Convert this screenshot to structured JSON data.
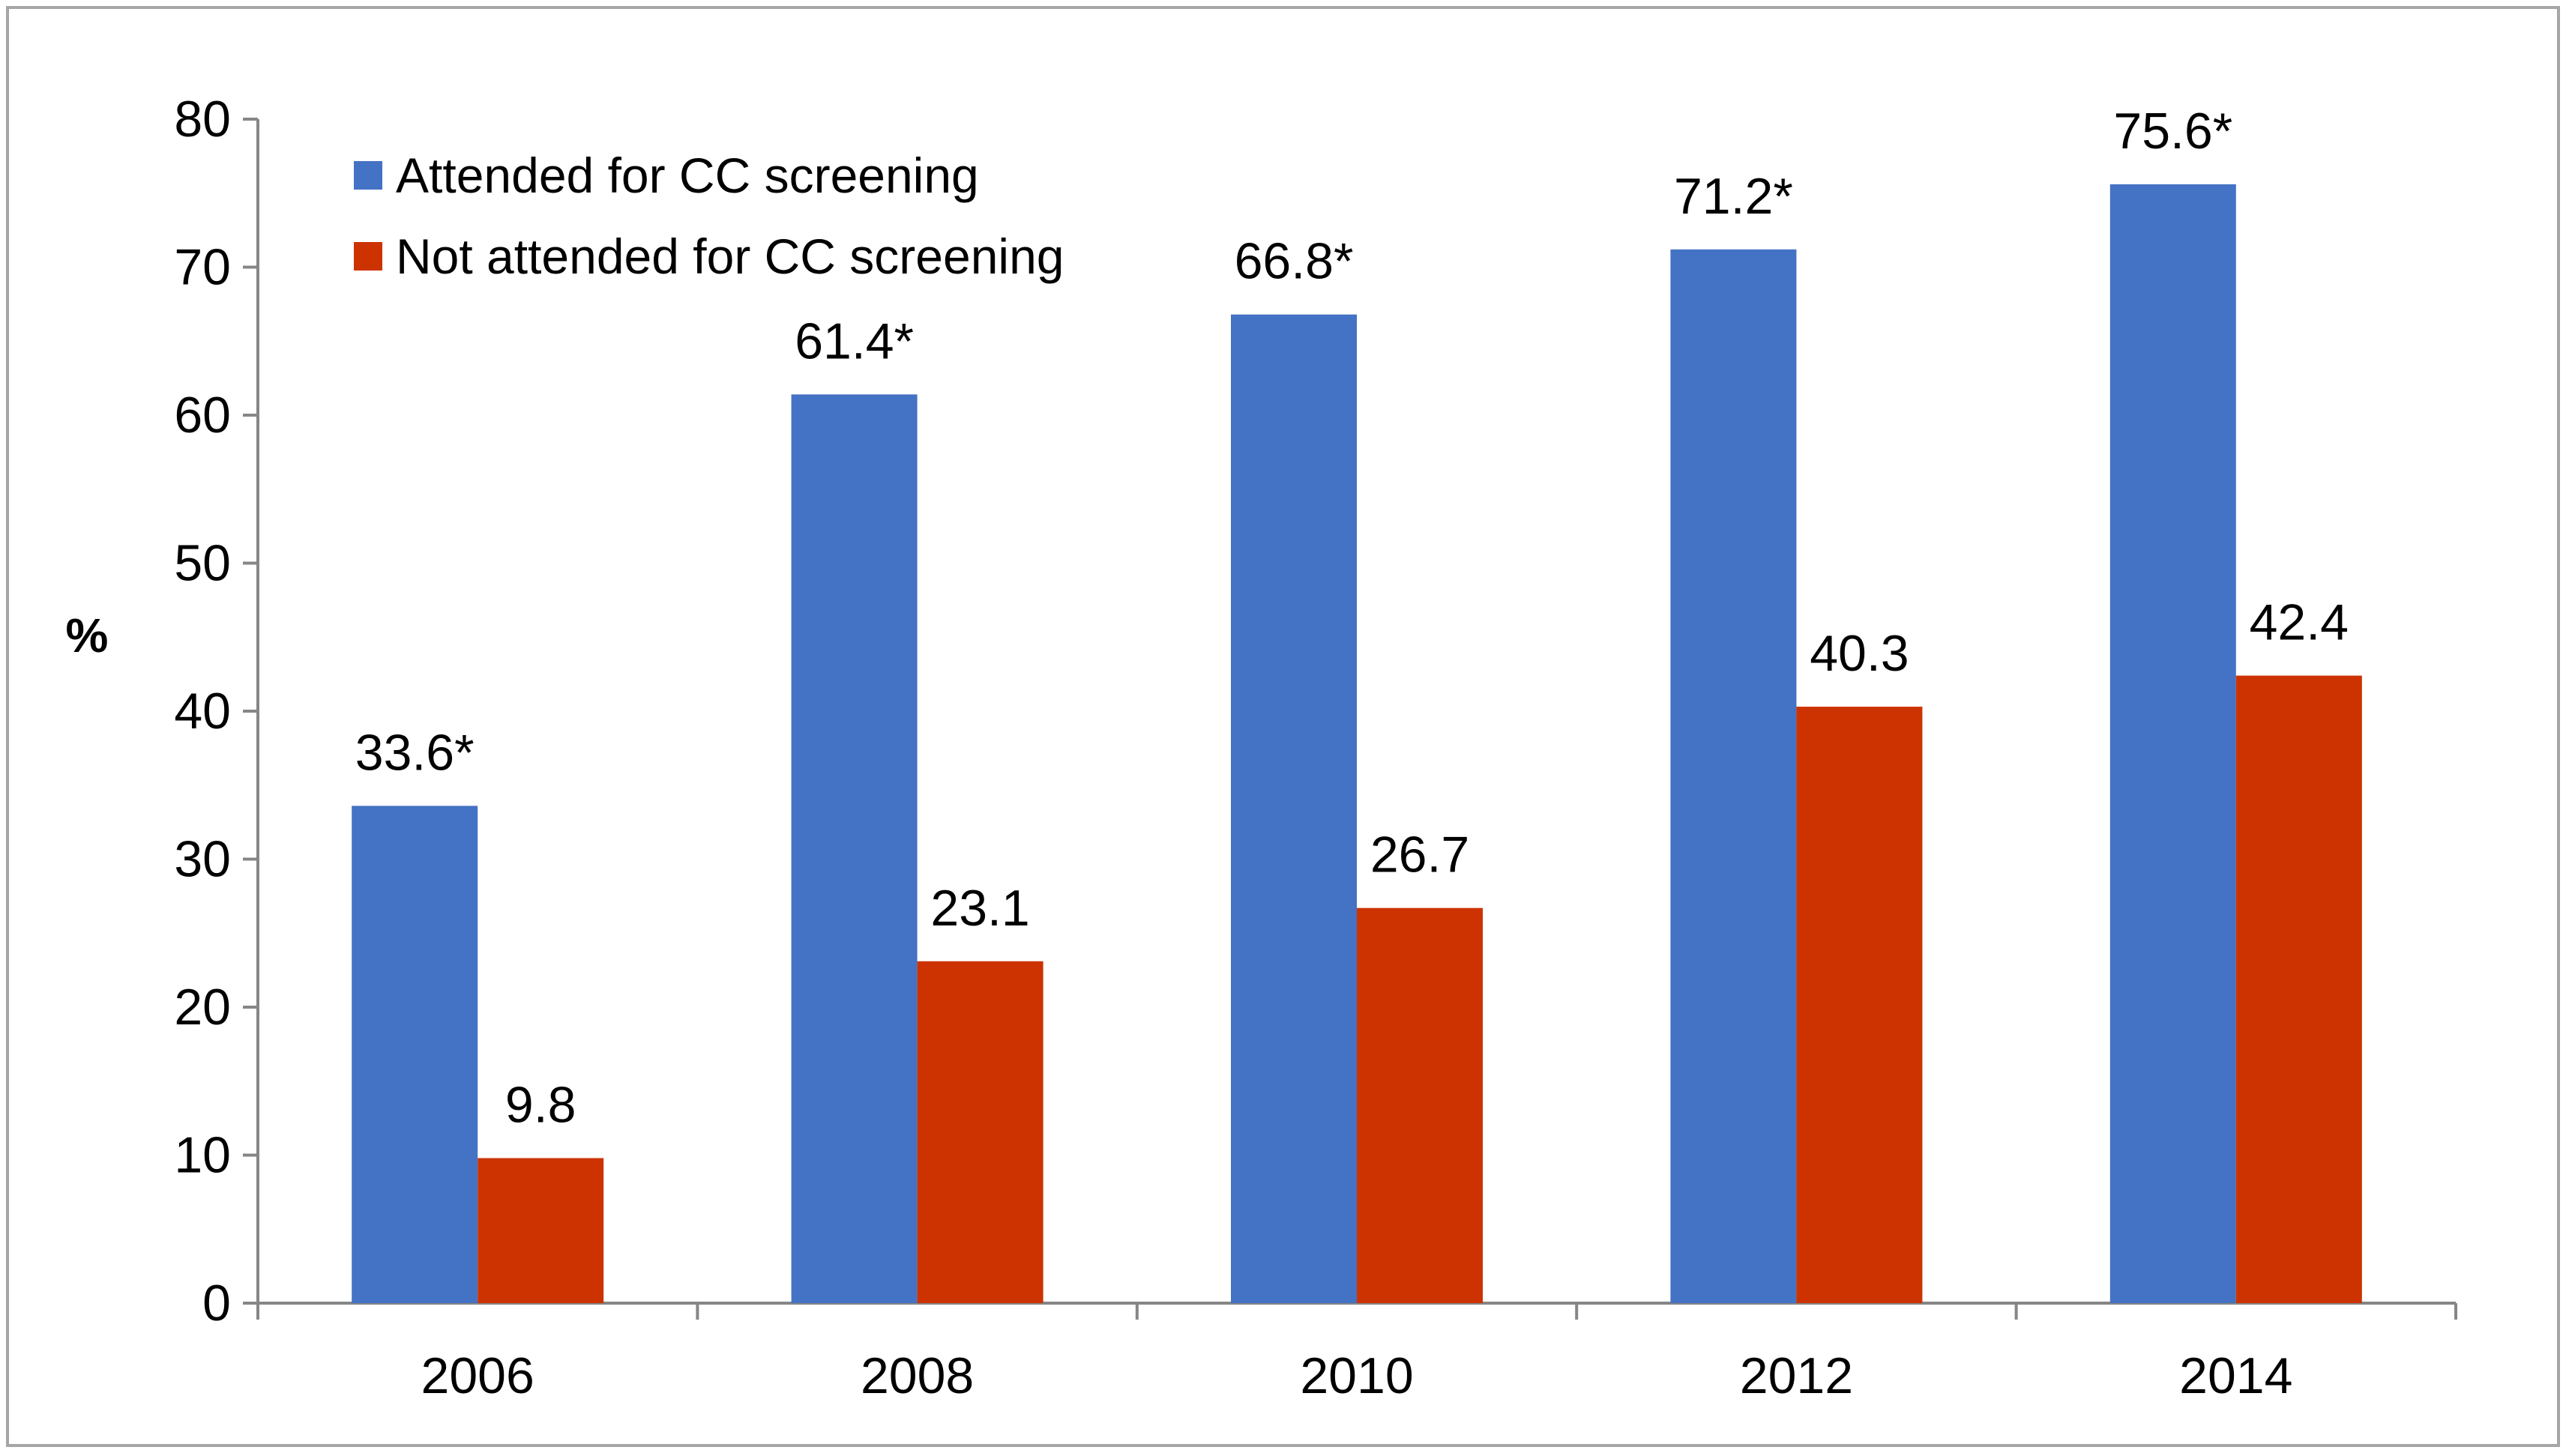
{
  "chart_data": {
    "type": "bar",
    "title": "",
    "xlabel": "",
    "ylabel": "%",
    "ylim": [
      0,
      80
    ],
    "yticks": [
      0,
      10,
      20,
      30,
      40,
      50,
      60,
      70,
      80
    ],
    "grid": false,
    "legend_position": "top-left",
    "categories": [
      "2006",
      "2008",
      "2010",
      "2012",
      "2014"
    ],
    "series": [
      {
        "name": "Attended for CC screening",
        "color": "#4472c4",
        "values": [
          33.6,
          61.4,
          66.8,
          71.2,
          75.6
        ],
        "labels": [
          "33.6*",
          "61.4*",
          "66.8*",
          "71.2*",
          "75.6*"
        ]
      },
      {
        "name": "Not attended for CC screening",
        "color": "#cc3300",
        "values": [
          9.8,
          23.1,
          26.7,
          40.3,
          42.4
        ],
        "labels": [
          "9.8",
          "23.1",
          "26.7",
          "40.3",
          "42.4"
        ]
      }
    ]
  }
}
